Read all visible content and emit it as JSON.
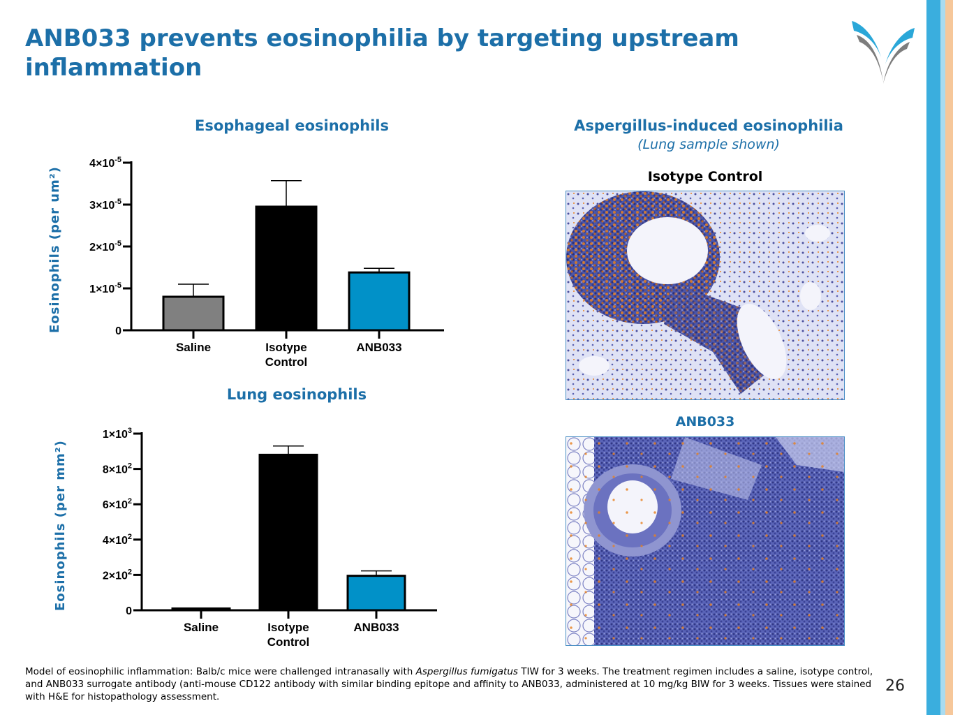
{
  "slide": {
    "title": "ANB033 prevents eosinophilia by targeting upstream inflammation",
    "page_number": "26",
    "footnote": {
      "part1": "Model of eosinophilic inflammation: Balb/c mice were challenged intranasally with ",
      "italic": "Aspergillus fumigatus",
      "part2": " TIW for 3 weeks. The treatment regimen includes a saline, isotype control, and ANB033 surrogate antibody (anti-mouse CD122 antibody with similar binding epitope and affinity to ANB033,  administered at 10 mg/kg BIW for 3 weeks.  Tissues were stained with H&E for histopathology assessment."
    },
    "colors": {
      "brand_blue": "#1c6fa8",
      "bar_saline": "#808080",
      "bar_isotype": "#000000",
      "bar_anb033": "#0191c8"
    }
  },
  "histology": {
    "title": "Aspergillus-induced eosinophilia",
    "subtitle": "(Lung sample shown)",
    "top_label": "Isotype Control",
    "bottom_label": "ANB033"
  },
  "chart_data": [
    {
      "type": "bar",
      "title": "Esophageal eosinophils",
      "ylabel": "Eosinophils  (per um²)",
      "categories": [
        [
          "Saline"
        ],
        [
          "Isotype",
          "Control"
        ],
        [
          "ANB033"
        ]
      ],
      "values": [
        8e-06,
        2.95e-05,
        1.38e-05
      ],
      "errors": [
        3e-06,
        6.2e-06,
        1e-06
      ],
      "bar_colors": [
        "#808080",
        "#000000",
        "#0191c8"
      ],
      "ylim": [
        0,
        4e-05
      ],
      "yticks": [
        {
          "value": 0,
          "label": "0",
          "sup": ""
        },
        {
          "value": 1e-05,
          "label": "1×10",
          "sup": "-5"
        },
        {
          "value": 2e-05,
          "label": "2×10",
          "sup": "-5"
        },
        {
          "value": 3e-05,
          "label": "3×10",
          "sup": "-5"
        },
        {
          "value": 4e-05,
          "label": "4×10",
          "sup": "-5"
        }
      ]
    },
    {
      "type": "bar",
      "title": "Lung eosinophils",
      "ylabel": "Eosinophils  (per mm²)",
      "categories": [
        [
          "Saline"
        ],
        [
          "Isotype",
          "Control"
        ],
        [
          "ANB033"
        ]
      ],
      "values": [
        10,
        880,
        195
      ],
      "errors": [
        3,
        50,
        28
      ],
      "bar_colors": [
        "#808080",
        "#000000",
        "#0191c8"
      ],
      "ylim": [
        0,
        1000
      ],
      "yticks": [
        {
          "value": 0,
          "label": "0",
          "sup": ""
        },
        {
          "value": 200,
          "label": "2×10",
          "sup": "2"
        },
        {
          "value": 400,
          "label": "4×10",
          "sup": "2"
        },
        {
          "value": 600,
          "label": "6×10",
          "sup": "2"
        },
        {
          "value": 800,
          "label": "8×10",
          "sup": "2"
        },
        {
          "value": 1000,
          "label": "1×10",
          "sup": "3"
        }
      ]
    }
  ]
}
